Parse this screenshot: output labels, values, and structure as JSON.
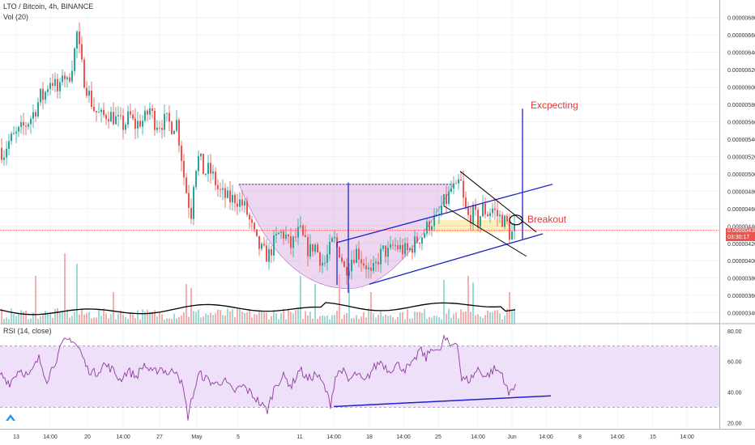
{
  "header": {
    "title": "LTO / Bitcoin, 4h, BINANCE",
    "volume_label": "Vol (20)",
    "rsi_label": "RSI (14, close)"
  },
  "price_badge": {
    "price": "0.00000435",
    "countdown": "03:30:17"
  },
  "annotations": {
    "expecting": "Excpecting",
    "breakout": "Breakout"
  },
  "colors": {
    "up": "#26a69a",
    "down": "#ef5350",
    "pattern_fill": "#ce93d8",
    "trendline": "#1e22c8",
    "annotation": "#e53935",
    "rsi_line": "#8e3a9e",
    "rsi_band": "#e1c6f5"
  },
  "chart_data": [
    {
      "type": "candlestick",
      "title": "LTO / Bitcoin, 4h, BINANCE",
      "x_ticks": [
        "13",
        "14:00",
        "20",
        "14:00",
        "27",
        "May",
        "5",
        "11",
        "14:00",
        "18",
        "14:00",
        "25",
        "14:00",
        "Jun",
        "14:00",
        "8",
        "14:00",
        "15",
        "14:00"
      ],
      "y_ticks": [
        "0.00000340",
        "0.00000360",
        "0.00000380",
        "0.00000400",
        "0.00000420",
        "0.00000440",
        "0.00000460",
        "0.00000480",
        "0.00000500",
        "0.00000520",
        "0.00000540",
        "0.00000560",
        "0.00000580",
        "0.00000600",
        "0.00000620",
        "0.00000640",
        "0.00000660",
        "0.00000680"
      ],
      "ylim": [
        3.35e-06,
        6.9e-06
      ],
      "grid": true,
      "last_price": 4.35e-06,
      "close_path": [
        [
          0,
          5.3e-06
        ],
        [
          4,
          5.22e-06
        ],
        [
          9,
          5.35e-06
        ],
        [
          14,
          5.4e-06
        ],
        [
          20,
          5.45e-06
        ],
        [
          27,
          5.52e-06
        ],
        [
          33,
          5.58e-06
        ],
        [
          38,
          5.65e-06
        ],
        [
          44,
          5.75e-06
        ],
        [
          50,
          5.9e-06
        ],
        [
          54,
          5.88e-06
        ],
        [
          58,
          6e-06
        ],
        [
          63,
          6.1e-06
        ],
        [
          68,
          6.02e-06
        ],
        [
          73,
          5.9e-06
        ],
        [
          78,
          6.25e-06
        ],
        [
          82,
          6e-06
        ],
        [
          86,
          6.15e-06
        ],
        [
          91,
          6.35e-06
        ],
        [
          95,
          6.62e-06
        ],
        [
          99,
          6.35e-06
        ],
        [
          103,
          6.12e-06
        ],
        [
          107,
          6e-06
        ],
        [
          112,
          5.85e-06
        ],
        [
          116,
          5.75e-06
        ],
        [
          120,
          5.7e-06
        ],
        [
          126,
          5.65e-06
        ],
        [
          133,
          5.7e-06
        ],
        [
          140,
          5.65e-06
        ],
        [
          146,
          5.6e-06
        ],
        [
          153,
          5.55e-06
        ],
        [
          160,
          5.68e-06
        ],
        [
          166,
          5.55e-06
        ],
        [
          172,
          5.6e-06
        ],
        [
          178,
          5.62e-06
        ],
        [
          185,
          5.75e-06
        ],
        [
          191,
          5.6e-06
        ],
        [
          198,
          5.58e-06
        ],
        [
          205,
          5.62e-06
        ],
        [
          212,
          5.55e-06
        ],
        [
          218,
          5.6e-06
        ],
        [
          224,
          5.2e-06
        ],
        [
          228,
          4.9e-06
        ],
        [
          232,
          4.7e-06
        ],
        [
          236,
          4.55e-06
        ],
        [
          240,
          5.05e-06
        ],
        [
          246,
          5.2e-06
        ],
        [
          252,
          5e-06
        ],
        [
          258,
          5.05e-06
        ],
        [
          264,
          4.95e-06
        ],
        [
          270,
          4.8e-06
        ],
        [
          276,
          4.75e-06
        ],
        [
          283,
          4.7e-06
        ],
        [
          290,
          4.72e-06
        ],
        [
          296,
          4.68e-06
        ],
        [
          303,
          4.6e-06
        ],
        [
          310,
          4.4e-06
        ],
        [
          317,
          4.2e-06
        ],
        [
          324,
          4.1e-06
        ],
        [
          331,
          4.05e-06
        ],
        [
          338,
          4.2e-06
        ],
        [
          345,
          4.32e-06
        ],
        [
          352,
          4.3e-06
        ],
        [
          358,
          4.15e-06
        ],
        [
          364,
          4.25e-06
        ],
        [
          370,
          4.35e-06
        ],
        [
          376,
          4.2e-06
        ],
        [
          382,
          4.1e-06
        ],
        [
          388,
          4.2e-06
        ],
        [
          394,
          4.05e-06
        ],
        [
          400,
          3.95e-06
        ],
        [
          406,
          4.1e-06
        ],
        [
          412,
          4.25e-06
        ],
        [
          416,
          4.15e-06
        ],
        [
          420,
          4.1e-06
        ],
        [
          425,
          3.9e-06
        ],
        [
          430,
          3.95e-06
        ],
        [
          435,
          4.05e-06
        ],
        [
          441,
          4.12e-06
        ],
        [
          447,
          4e-06
        ],
        [
          452,
          3.95e-06
        ],
        [
          458,
          3.82e-06
        ],
        [
          463,
          3.92e-06
        ],
        [
          468,
          4.05e-06
        ],
        [
          474,
          4.12e-06
        ],
        [
          480,
          4.08e-06
        ],
        [
          486,
          4.18e-06
        ],
        [
          492,
          4.15e-06
        ],
        [
          498,
          4.12e-06
        ],
        [
          504,
          4.1e-06
        ],
        [
          510,
          4.18e-06
        ],
        [
          516,
          4.25e-06
        ],
        [
          522,
          4.3e-06
        ],
        [
          528,
          4.4e-06
        ],
        [
          534,
          4.47e-06
        ],
        [
          540,
          4.45e-06
        ],
        [
          546,
          4.65e-06
        ],
        [
          552,
          4.7e-06
        ],
        [
          558,
          4.85e-06
        ],
        [
          563,
          4.8e-06
        ],
        [
          568,
          4.95e-06
        ],
        [
          573,
          4.62e-06
        ],
        [
          578,
          4.5e-06
        ],
        [
          584,
          4.55e-06
        ],
        [
          590,
          4.45e-06
        ],
        [
          596,
          4.6e-06
        ],
        [
          602,
          4.55e-06
        ],
        [
          608,
          4.6e-06
        ],
        [
          614,
          4.52e-06
        ],
        [
          620,
          4.48e-06
        ],
        [
          626,
          4.42e-06
        ],
        [
          630,
          4.28e-06
        ],
        [
          634,
          4.35e-06
        ],
        [
          637,
          4.37e-06
        ]
      ]
    },
    {
      "type": "bar",
      "title": "Vol (20)",
      "grid": false
    },
    {
      "type": "line",
      "title": "RSI (14, close)",
      "y_ticks": [
        "20.00",
        "40.00",
        "60.00",
        "80.00"
      ],
      "ylim": [
        17,
        82
      ],
      "bands": [
        30,
        70
      ],
      "values": [
        [
          0,
          52
        ],
        [
          12,
          46
        ],
        [
          24,
          55
        ],
        [
          36,
          50
        ],
        [
          48,
          62
        ],
        [
          58,
          48
        ],
        [
          68,
          60
        ],
        [
          78,
          72
        ],
        [
          88,
          75
        ],
        [
          98,
          68
        ],
        [
          108,
          55
        ],
        [
          118,
          52
        ],
        [
          128,
          58
        ],
        [
          138,
          55
        ],
        [
          148,
          48
        ],
        [
          158,
          54
        ],
        [
          168,
          50
        ],
        [
          178,
          58
        ],
        [
          188,
          52
        ],
        [
          198,
          56
        ],
        [
          208,
          52
        ],
        [
          218,
          55
        ],
        [
          226,
          42
        ],
        [
          232,
          24
        ],
        [
          238,
          38
        ],
        [
          246,
          52
        ],
        [
          256,
          48
        ],
        [
          266,
          45
        ],
        [
          276,
          48
        ],
        [
          288,
          40
        ],
        [
          300,
          44
        ],
        [
          312,
          38
        ],
        [
          322,
          32
        ],
        [
          330,
          28
        ],
        [
          340,
          45
        ],
        [
          350,
          50
        ],
        [
          360,
          44
        ],
        [
          370,
          55
        ],
        [
          380,
          48
        ],
        [
          390,
          52
        ],
        [
          400,
          44
        ],
        [
          408,
          32
        ],
        [
          414,
          50
        ],
        [
          422,
          55
        ],
        [
          430,
          47
        ],
        [
          440,
          52
        ],
        [
          450,
          46
        ],
        [
          460,
          55
        ],
        [
          470,
          60
        ],
        [
          480,
          54
        ],
        [
          490,
          58
        ],
        [
          500,
          55
        ],
        [
          510,
          58
        ],
        [
          518,
          68
        ],
        [
          526,
          62
        ],
        [
          534,
          70
        ],
        [
          542,
          65
        ],
        [
          548,
          75
        ],
        [
          556,
          70
        ],
        [
          564,
          74
        ],
        [
          570,
          48
        ],
        [
          580,
          48
        ],
        [
          590,
          55
        ],
        [
          600,
          50
        ],
        [
          610,
          55
        ],
        [
          620,
          52
        ],
        [
          628,
          38
        ],
        [
          634,
          44
        ],
        [
          637,
          45
        ]
      ]
    }
  ]
}
